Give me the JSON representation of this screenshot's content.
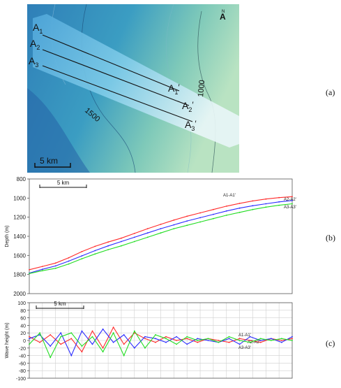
{
  "map": {
    "profiles": [
      {
        "start": "A1",
        "end": "A1'",
        "start_main": "A",
        "start_sub": "1",
        "end_main": "A",
        "end_sub": "1",
        "prime": "′"
      },
      {
        "start": "A2",
        "end": "A2'",
        "start_main": "A",
        "start_sub": "2",
        "end_main": "A",
        "end_sub": "2",
        "prime": "′"
      },
      {
        "start": "A3",
        "end": "A3'",
        "start_main": "A",
        "start_sub": "3",
        "end_main": "A",
        "end_sub": "3",
        "prime": "′"
      }
    ],
    "contour_labels": [
      "1500",
      "1000"
    ],
    "scale_bar_label": "5 km",
    "north_label": "N",
    "north_arrow": "A"
  },
  "panel_labels": [
    "(a)",
    "(b)",
    "(c)"
  ],
  "chart_data": [
    {
      "type": "line",
      "panel": "(b)",
      "ylabel": "Depth (m)",
      "ylim": [
        2000,
        800
      ],
      "y_inverted": true,
      "yticks": [
        800,
        1000,
        1200,
        1400,
        1600,
        1800,
        2000
      ],
      "xlim": [
        0,
        100
      ],
      "scale_bar_label": "5 km",
      "grid": false,
      "series": [
        {
          "name": "A1-A1'",
          "color": "#ff2a2a",
          "x": [
            0,
            5,
            10,
            15,
            20,
            25,
            30,
            35,
            40,
            45,
            50,
            55,
            60,
            65,
            70,
            75,
            80,
            85,
            90,
            95,
            100
          ],
          "values": [
            1750,
            1715,
            1680,
            1625,
            1560,
            1505,
            1460,
            1420,
            1370,
            1320,
            1275,
            1230,
            1190,
            1155,
            1120,
            1085,
            1055,
            1030,
            1010,
            995,
            985
          ]
        },
        {
          "name": "A2-A2'",
          "color": "#2a2aff",
          "x": [
            0,
            5,
            10,
            15,
            20,
            25,
            30,
            35,
            40,
            45,
            50,
            55,
            60,
            65,
            70,
            75,
            80,
            85,
            90,
            95,
            100
          ],
          "values": [
            1785,
            1745,
            1710,
            1660,
            1605,
            1550,
            1500,
            1455,
            1410,
            1365,
            1320,
            1280,
            1240,
            1205,
            1170,
            1135,
            1105,
            1080,
            1060,
            1040,
            1025
          ]
        },
        {
          "name": "A3-A3'",
          "color": "#22dd22",
          "x": [
            0,
            5,
            10,
            15,
            20,
            25,
            30,
            35,
            40,
            45,
            50,
            55,
            60,
            65,
            70,
            75,
            80,
            85,
            90,
            95,
            100
          ],
          "values": [
            1790,
            1760,
            1735,
            1690,
            1635,
            1585,
            1540,
            1500,
            1455,
            1410,
            1365,
            1320,
            1285,
            1250,
            1215,
            1180,
            1150,
            1120,
            1095,
            1075,
            1060
          ]
        }
      ]
    },
    {
      "type": "line",
      "panel": "(c)",
      "ylabel": "Wave height (m)",
      "ylim": [
        -100,
        100
      ],
      "yticks": [
        -100,
        -80,
        -60,
        -40,
        -20,
        0,
        20,
        40,
        60,
        80,
        100
      ],
      "xlim": [
        0,
        100
      ],
      "scale_bar_label": "5 km",
      "grid": true,
      "series": [
        {
          "name": "A1-A1'",
          "color": "#ff2a2a",
          "x": [
            0,
            4,
            8,
            12,
            16,
            20,
            24,
            28,
            32,
            36,
            40,
            44,
            48,
            52,
            56,
            60,
            64,
            68,
            72,
            76,
            80,
            84,
            88,
            92,
            96,
            100
          ],
          "values": [
            10,
            -5,
            15,
            -10,
            5,
            -30,
            25,
            -20,
            35,
            -10,
            20,
            5,
            -5,
            10,
            0,
            5,
            -5,
            5,
            0,
            -5,
            5,
            0,
            -5,
            5,
            0,
            5
          ]
        },
        {
          "name": "A2-A2'",
          "color": "#2a2aff",
          "x": [
            0,
            4,
            8,
            12,
            16,
            20,
            24,
            28,
            32,
            36,
            40,
            44,
            48,
            52,
            56,
            60,
            64,
            68,
            72,
            76,
            80,
            84,
            88,
            92,
            96,
            100
          ],
          "values": [
            5,
            15,
            -15,
            20,
            -40,
            25,
            -10,
            30,
            -5,
            15,
            -20,
            10,
            5,
            -5,
            10,
            -10,
            5,
            0,
            -5,
            5,
            -10,
            10,
            0,
            5,
            -5,
            10
          ]
        },
        {
          "name": "A3-A3'",
          "color": "#22dd22",
          "x": [
            0,
            4,
            8,
            12,
            16,
            20,
            24,
            28,
            32,
            36,
            40,
            44,
            48,
            52,
            56,
            60,
            64,
            68,
            72,
            76,
            80,
            84,
            88,
            92,
            96,
            100
          ],
          "values": [
            -10,
            20,
            -45,
            10,
            20,
            -15,
            10,
            -30,
            20,
            -40,
            25,
            -20,
            15,
            5,
            -10,
            10,
            0,
            5,
            -5,
            10,
            0,
            -5,
            5,
            0,
            5,
            0
          ]
        }
      ]
    }
  ]
}
